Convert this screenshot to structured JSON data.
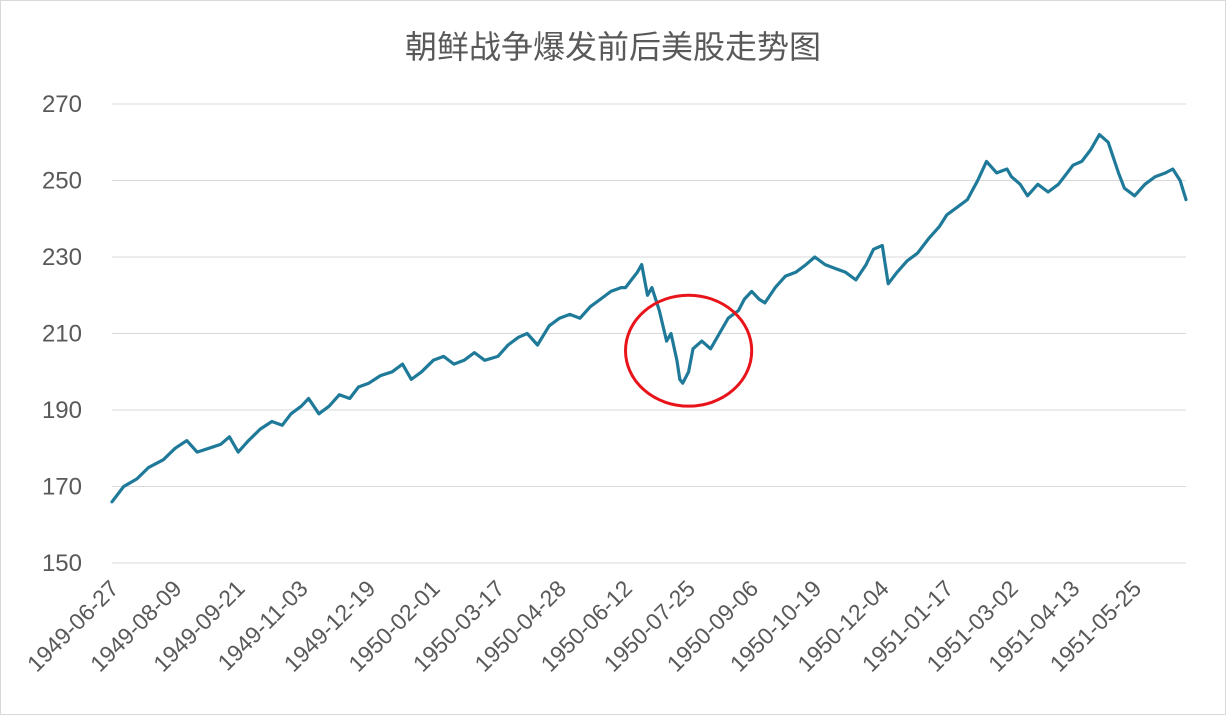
{
  "chart_data": {
    "type": "line",
    "title": "朝鲜战争爆发前后美股走势图",
    "xlabel": "",
    "ylabel": "",
    "ylim": [
      150,
      270
    ],
    "yticks": [
      150,
      170,
      190,
      210,
      230,
      250,
      270
    ],
    "x_tick_labels": [
      "1949-06-27",
      "1949-08-09",
      "1949-09-21",
      "1949-11-03",
      "1949-12-19",
      "1950-02-01",
      "1950-03-17",
      "1950-04-28",
      "1950-06-12",
      "1950-07-25",
      "1950-09-06",
      "1950-10-19",
      "1950-12-04",
      "1951-01-17",
      "1951-03-02",
      "1951-04-13",
      "1951-05-25"
    ],
    "grid": "horizontal",
    "line_color": "#1f7a99",
    "annotation": {
      "shape": "ellipse",
      "color": "#e8141a",
      "x_range": [
        "1950-06-12",
        "1950-09-06"
      ],
      "y_range": [
        191,
        220
      ]
    },
    "series": [
      {
        "points": [
          [
            "1949-06-27",
            166
          ],
          [
            "1949-07-05",
            170
          ],
          [
            "1949-07-14",
            172
          ],
          [
            "1949-07-22",
            175
          ],
          [
            "1949-08-01",
            177
          ],
          [
            "1949-08-09",
            180
          ],
          [
            "1949-08-17",
            182
          ],
          [
            "1949-08-24",
            179
          ],
          [
            "1949-09-01",
            180
          ],
          [
            "1949-09-09",
            181
          ],
          [
            "1949-09-15",
            183
          ],
          [
            "1949-09-21",
            179
          ],
          [
            "1949-09-28",
            182
          ],
          [
            "1949-10-06",
            185
          ],
          [
            "1949-10-14",
            187
          ],
          [
            "1949-10-21",
            186
          ],
          [
            "1949-10-27",
            189
          ],
          [
            "1949-11-03",
            191
          ],
          [
            "1949-11-08",
            193
          ],
          [
            "1949-11-15",
            189
          ],
          [
            "1949-11-22",
            191
          ],
          [
            "1949-11-29",
            194
          ],
          [
            "1949-12-06",
            193
          ],
          [
            "1949-12-12",
            196
          ],
          [
            "1949-12-19",
            197
          ],
          [
            "1949-12-27",
            199
          ],
          [
            "1950-01-04",
            200
          ],
          [
            "1950-01-11",
            202
          ],
          [
            "1950-01-17",
            198
          ],
          [
            "1950-01-24",
            200
          ],
          [
            "1950-02-01",
            203
          ],
          [
            "1950-02-08",
            204
          ],
          [
            "1950-02-15",
            202
          ],
          [
            "1950-02-22",
            203
          ],
          [
            "1950-03-01",
            205
          ],
          [
            "1950-03-08",
            203
          ],
          [
            "1950-03-17",
            204
          ],
          [
            "1950-03-24",
            207
          ],
          [
            "1950-03-31",
            209
          ],
          [
            "1950-04-06",
            210
          ],
          [
            "1950-04-13",
            207
          ],
          [
            "1950-04-21",
            212
          ],
          [
            "1950-04-28",
            214
          ],
          [
            "1950-05-05",
            215
          ],
          [
            "1950-05-12",
            214
          ],
          [
            "1950-05-19",
            217
          ],
          [
            "1950-05-26",
            219
          ],
          [
            "1950-06-02",
            221
          ],
          [
            "1950-06-09",
            222
          ],
          [
            "1950-06-12",
            222
          ],
          [
            "1950-06-16",
            224
          ],
          [
            "1950-06-20",
            226
          ],
          [
            "1950-06-23",
            228
          ],
          [
            "1950-06-27",
            220
          ],
          [
            "1950-06-30",
            222
          ],
          [
            "1950-07-05",
            216
          ],
          [
            "1950-07-10",
            208
          ],
          [
            "1950-07-13",
            210
          ],
          [
            "1950-07-17",
            203
          ],
          [
            "1950-07-19",
            198
          ],
          [
            "1950-07-21",
            197
          ],
          [
            "1950-07-25",
            200
          ],
          [
            "1950-07-28",
            206
          ],
          [
            "1950-08-03",
            208
          ],
          [
            "1950-08-09",
            206
          ],
          [
            "1950-08-15",
            210
          ],
          [
            "1950-08-21",
            214
          ],
          [
            "1950-08-28",
            216
          ],
          [
            "1950-09-01",
            219
          ],
          [
            "1950-09-06",
            221
          ],
          [
            "1950-09-11",
            219
          ],
          [
            "1950-09-15",
            218
          ],
          [
            "1950-09-22",
            222
          ],
          [
            "1950-09-29",
            225
          ],
          [
            "1950-10-06",
            226
          ],
          [
            "1950-10-13",
            228
          ],
          [
            "1950-10-19",
            230
          ],
          [
            "1950-10-26",
            228
          ],
          [
            "1950-11-02",
            227
          ],
          [
            "1950-11-09",
            226
          ],
          [
            "1950-11-16",
            224
          ],
          [
            "1950-11-23",
            228
          ],
          [
            "1950-11-28",
            232
          ],
          [
            "1950-12-04",
            233
          ],
          [
            "1950-12-08",
            223
          ],
          [
            "1950-12-14",
            226
          ],
          [
            "1950-12-21",
            229
          ],
          [
            "1950-12-28",
            231
          ],
          [
            "1951-01-05",
            235
          ],
          [
            "1951-01-12",
            238
          ],
          [
            "1951-01-17",
            241
          ],
          [
            "1951-01-24",
            243
          ],
          [
            "1951-01-31",
            245
          ],
          [
            "1951-02-07",
            250
          ],
          [
            "1951-02-13",
            255
          ],
          [
            "1951-02-20",
            252
          ],
          [
            "1951-02-27",
            253
          ],
          [
            "1951-03-02",
            251
          ],
          [
            "1951-03-08",
            249
          ],
          [
            "1951-03-13",
            246
          ],
          [
            "1951-03-20",
            249
          ],
          [
            "1951-03-27",
            247
          ],
          [
            "1951-04-03",
            249
          ],
          [
            "1951-04-09",
            252
          ],
          [
            "1951-04-13",
            254
          ],
          [
            "1951-04-19",
            255
          ],
          [
            "1951-04-25",
            258
          ],
          [
            "1951-05-01",
            262
          ],
          [
            "1951-05-07",
            260
          ],
          [
            "1951-05-14",
            252
          ],
          [
            "1951-05-18",
            248
          ],
          [
            "1951-05-25",
            246
          ],
          [
            "1951-06-01",
            249
          ],
          [
            "1951-06-08",
            251
          ],
          [
            "1951-06-15",
            252
          ],
          [
            "1951-06-20",
            253
          ],
          [
            "1951-06-25",
            250
          ],
          [
            "1951-06-29",
            245
          ]
        ]
      }
    ]
  }
}
